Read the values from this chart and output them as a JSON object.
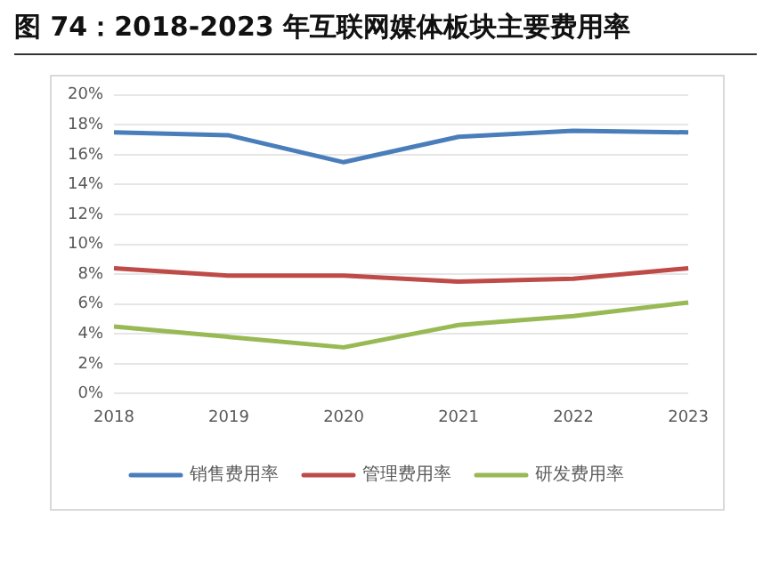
{
  "chart_data": {
    "type": "line",
    "title": "图 74：2018-2023 年互联网媒体板块主要费用率",
    "categories": [
      "2018",
      "2019",
      "2020",
      "2021",
      "2022",
      "2023"
    ],
    "series": [
      {
        "name": "销售费用率",
        "color": "#4a7ebb",
        "values": [
          17.5,
          17.3,
          15.5,
          17.2,
          17.6,
          17.5
        ]
      },
      {
        "name": "管理费用率",
        "color": "#be4b48",
        "values": [
          8.4,
          7.9,
          7.9,
          7.5,
          7.7,
          8.4
        ]
      },
      {
        "name": "研发费用率",
        "color": "#98b954",
        "values": [
          4.5,
          3.8,
          3.1,
          4.6,
          5.2,
          6.1
        ]
      }
    ],
    "ylim": [
      0,
      20
    ],
    "yticks": [
      {
        "value": 0,
        "label": "0%"
      },
      {
        "value": 2,
        "label": "2%"
      },
      {
        "value": 4,
        "label": "4%"
      },
      {
        "value": 6,
        "label": "6%"
      },
      {
        "value": 8,
        "label": "8%"
      },
      {
        "value": 10,
        "label": "10%"
      },
      {
        "value": 12,
        "label": "12%"
      },
      {
        "value": 14,
        "label": "14%"
      },
      {
        "value": 16,
        "label": "16%"
      },
      {
        "value": 18,
        "label": "18%"
      },
      {
        "value": 20,
        "label": "20%"
      }
    ],
    "grid": "y",
    "legend": "bottom",
    "marker": "none",
    "line_style": "solid"
  }
}
